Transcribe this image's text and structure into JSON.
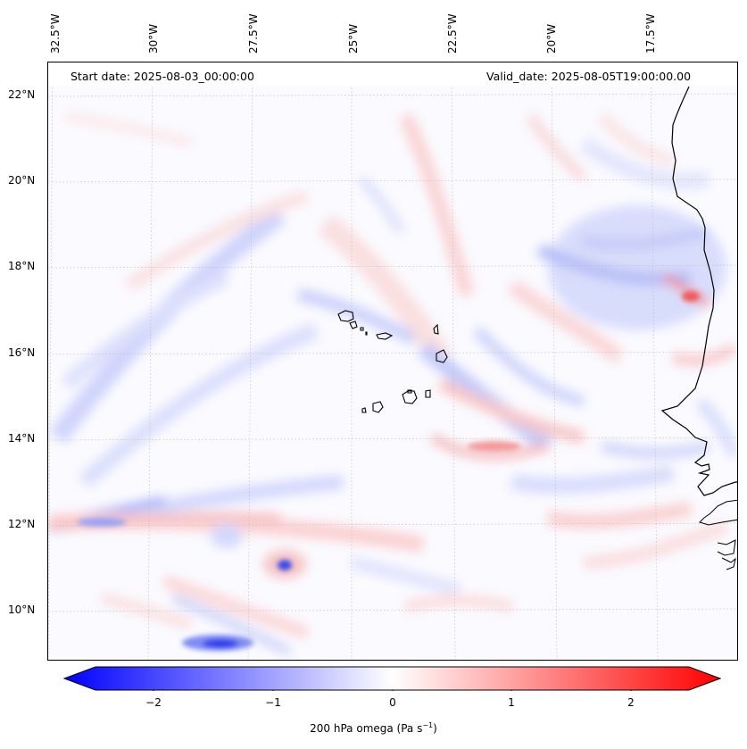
{
  "map": {
    "start_date": "Start date: 2025-08-03_00:00:00",
    "valid_date": "Valid_date: 2025-08-05T19:00:00.00",
    "lon_labels": [
      "32.5°W",
      "30°W",
      "27.5°W",
      "25°W",
      "22.5°W",
      "20°W",
      "17.5°W"
    ],
    "lat_labels": [
      "22°N",
      "20°N",
      "18°N",
      "16°N",
      "14°N",
      "12°N",
      "10°N"
    ],
    "gridlines": true,
    "coastline_color": "#000000"
  },
  "colorbar": {
    "label": "200 hPa omega (Pa s",
    "label_sup": "−1",
    "label_end": ")",
    "ticks": [
      "−2",
      "−1",
      "0",
      "1",
      "2"
    ],
    "range": [
      -2.7,
      2.7
    ],
    "colormap": "bwr",
    "low_color": "#0000ff",
    "mid_color": "#ffffff",
    "high_color": "#ff0000"
  }
}
